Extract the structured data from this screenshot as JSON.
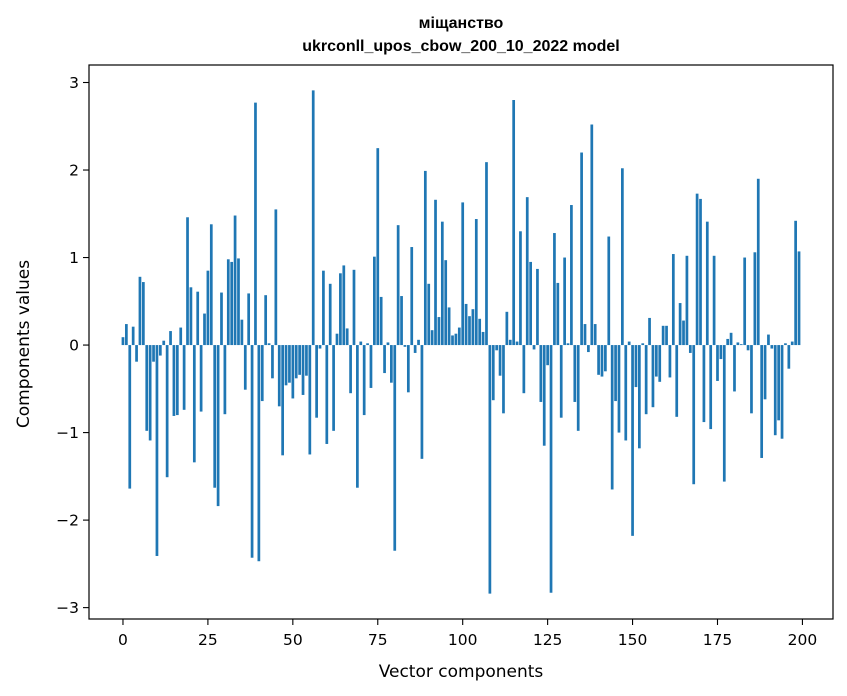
{
  "chart_data": {
    "type": "bar",
    "title": "міщанство",
    "subtitle": "ukrconll_upos_cbow_200_10_2022 model",
    "xlabel": "Vector components",
    "ylabel": "Components values",
    "xlim": [
      -10,
      209
    ],
    "ylim": [
      -3.13,
      3.2
    ],
    "xticks": [
      0,
      25,
      50,
      75,
      100,
      125,
      150,
      175,
      200
    ],
    "xtick_labels": [
      "0",
      "25",
      "50",
      "75",
      "100",
      "125",
      "150",
      "175",
      "200"
    ],
    "yticks": [
      -3,
      -2,
      -1,
      0,
      1,
      2,
      3
    ],
    "ytick_labels": [
      "−3",
      "−2",
      "−1",
      "0",
      "1",
      "2",
      "3"
    ],
    "grid": false,
    "bar_color": "#1f77b4",
    "values": [
      0.09,
      0.24,
      -1.64,
      0.21,
      -0.19,
      0.78,
      0.72,
      -0.98,
      -1.09,
      -0.19,
      -2.41,
      -0.12,
      0.05,
      -1.51,
      0.16,
      -0.81,
      -0.8,
      0.2,
      -0.74,
      1.46,
      0.66,
      -1.34,
      0.61,
      -0.76,
      0.36,
      0.85,
      1.38,
      -1.63,
      -1.84,
      0.6,
      -0.79,
      0.98,
      0.95,
      1.48,
      0.99,
      0.29,
      -0.51,
      0.59,
      -2.43,
      2.77,
      -2.47,
      -0.64,
      0.57,
      0.02,
      -0.38,
      1.55,
      -0.7,
      -1.26,
      -0.46,
      -0.43,
      -0.61,
      -0.38,
      -0.34,
      -0.57,
      -0.35,
      -1.25,
      2.91,
      -0.83,
      -0.04,
      0.85,
      -1.13,
      0.7,
      -0.98,
      0.13,
      0.82,
      0.91,
      0.19,
      -0.55,
      0.86,
      -1.63,
      0.04,
      -0.8,
      0.02,
      -0.49,
      1.01,
      2.25,
      0.55,
      -0.32,
      0.03,
      -0.43,
      -2.35,
      1.37,
      0.56,
      -0.02,
      -0.54,
      1.12,
      -0.09,
      0.06,
      -1.3,
      1.99,
      0.7,
      0.17,
      1.66,
      0.32,
      1.41,
      0.97,
      0.43,
      0.11,
      0.13,
      0.2,
      1.63,
      0.47,
      0.33,
      0.41,
      1.44,
      0.3,
      0.15,
      2.09,
      -2.84,
      -0.63,
      -0.06,
      -0.35,
      -0.78,
      0.38,
      0.06,
      2.8,
      0.04,
      1.3,
      -0.55,
      1.69,
      0.95,
      -0.05,
      0.87,
      -0.65,
      -1.15,
      -0.23,
      -2.83,
      1.28,
      0.71,
      -0.83,
      1.0,
      0.02,
      1.6,
      -0.65,
      -0.98,
      2.2,
      0.24,
      -0.08,
      2.52,
      0.24,
      -0.34,
      -0.36,
      -0.3,
      1.24,
      -1.65,
      -0.64,
      -1.0,
      2.02,
      -1.09,
      0.04,
      -2.18,
      -0.48,
      -1.18,
      0.02,
      -0.79,
      0.31,
      -0.71,
      -0.36,
      -0.42,
      0.22,
      0.22,
      -0.37,
      1.04,
      -0.82,
      0.48,
      0.28,
      1.02,
      -0.09,
      -1.59,
      1.73,
      1.67,
      -0.88,
      1.41,
      -0.96,
      1.02,
      -0.41,
      -0.16,
      -1.56,
      0.07,
      0.14,
      -0.53,
      0.03,
      0.01,
      1.0,
      -0.06,
      -0.78,
      1.06,
      1.9,
      -1.29,
      -0.62,
      0.12,
      -0.04,
      -1.03,
      -0.86,
      -1.07,
      0.02,
      -0.27,
      0.04,
      1.42,
      1.07
    ]
  }
}
